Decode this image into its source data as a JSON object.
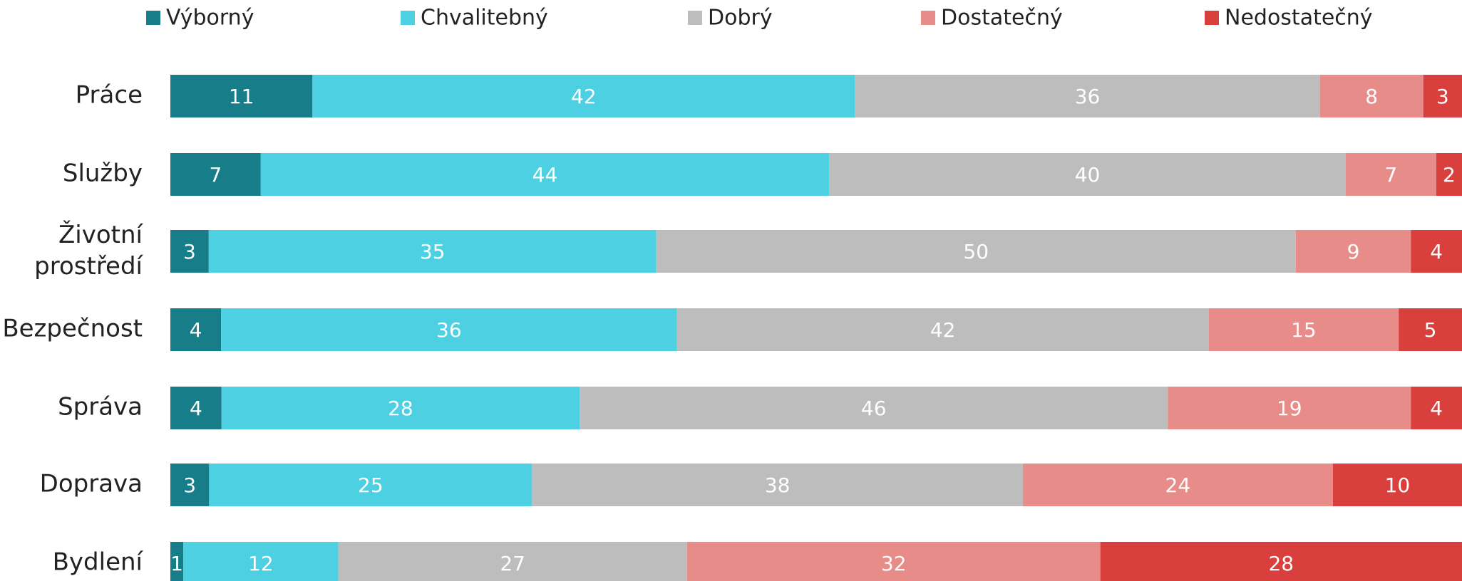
{
  "chart_data": {
    "type": "bar",
    "orientation": "horizontal",
    "stack": "percent",
    "categories": [
      "Práce",
      "Služby",
      "Životní prostředí",
      "Bezpečnost",
      "Správa",
      "Doprava",
      "Bydlení"
    ],
    "series": [
      {
        "name": "Výborný",
        "color": "#177e89",
        "values": [
          11,
          7,
          3,
          4,
          4,
          3,
          1
        ]
      },
      {
        "name": "Chvalitebný",
        "color": "#4dd0e1",
        "values": [
          42,
          44,
          35,
          36,
          28,
          25,
          12
        ]
      },
      {
        "name": "Dobrý",
        "color": "#bdbdbd",
        "values": [
          36,
          40,
          50,
          42,
          46,
          38,
          27
        ]
      },
      {
        "name": "Dostatečný",
        "color": "#e88c8a",
        "values": [
          8,
          7,
          9,
          15,
          19,
          24,
          32
        ]
      },
      {
        "name": "Nedostatečný",
        "color": "#d93f3c",
        "values": [
          3,
          2,
          4,
          5,
          4,
          10,
          28
        ]
      }
    ],
    "legend": "top"
  }
}
